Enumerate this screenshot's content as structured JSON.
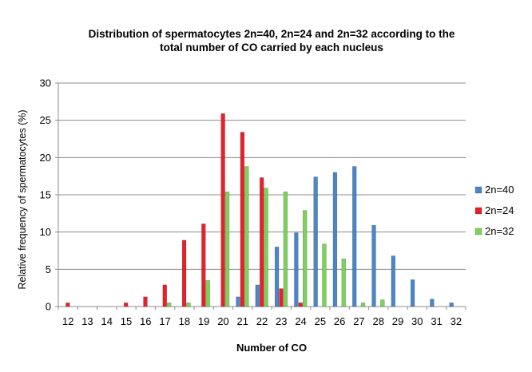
{
  "chart_data": {
    "type": "bar",
    "title_lines": [
      "Distribution of spermatocytes 2n=40, 2n=24 and 2n=32 according to the",
      "total number of CO carried by each nucleus"
    ],
    "xlabel": "Number of CO",
    "ylabel": "Relative frequency of spermatocytes (%)",
    "ylim": [
      0,
      30
    ],
    "yticks": [
      0,
      5,
      10,
      15,
      20,
      25,
      30
    ],
    "grid": true,
    "legend_position": "right",
    "categories": [
      "12",
      "13",
      "14",
      "15",
      "16",
      "17",
      "18",
      "19",
      "20",
      "21",
      "22",
      "23",
      "24",
      "25",
      "26",
      "27",
      "28",
      "29",
      "30",
      "31",
      "32"
    ],
    "series": [
      {
        "name": "2n=40",
        "color": "#4a86c8",
        "values": [
          0,
          0,
          0,
          0,
          0,
          0,
          0,
          0,
          0,
          1.3,
          2.9,
          8.0,
          9.9,
          17.4,
          18.0,
          18.8,
          10.9,
          6.8,
          3.6,
          1.0,
          0.5
        ]
      },
      {
        "name": "2n=24",
        "color": "#e8202a",
        "values": [
          0.5,
          0,
          0,
          0.5,
          1.3,
          2.9,
          8.9,
          11.1,
          25.9,
          23.4,
          17.3,
          2.4,
          0.5,
          0,
          0,
          0,
          0,
          0,
          0,
          0,
          0
        ]
      },
      {
        "name": "2n=32",
        "color": "#7bd35a",
        "values": [
          0,
          0,
          0,
          0,
          0,
          0.5,
          0.5,
          3.5,
          15.4,
          18.8,
          15.9,
          15.4,
          12.9,
          8.4,
          6.4,
          0.5,
          0.9,
          0,
          0,
          0,
          0
        ]
      }
    ]
  }
}
